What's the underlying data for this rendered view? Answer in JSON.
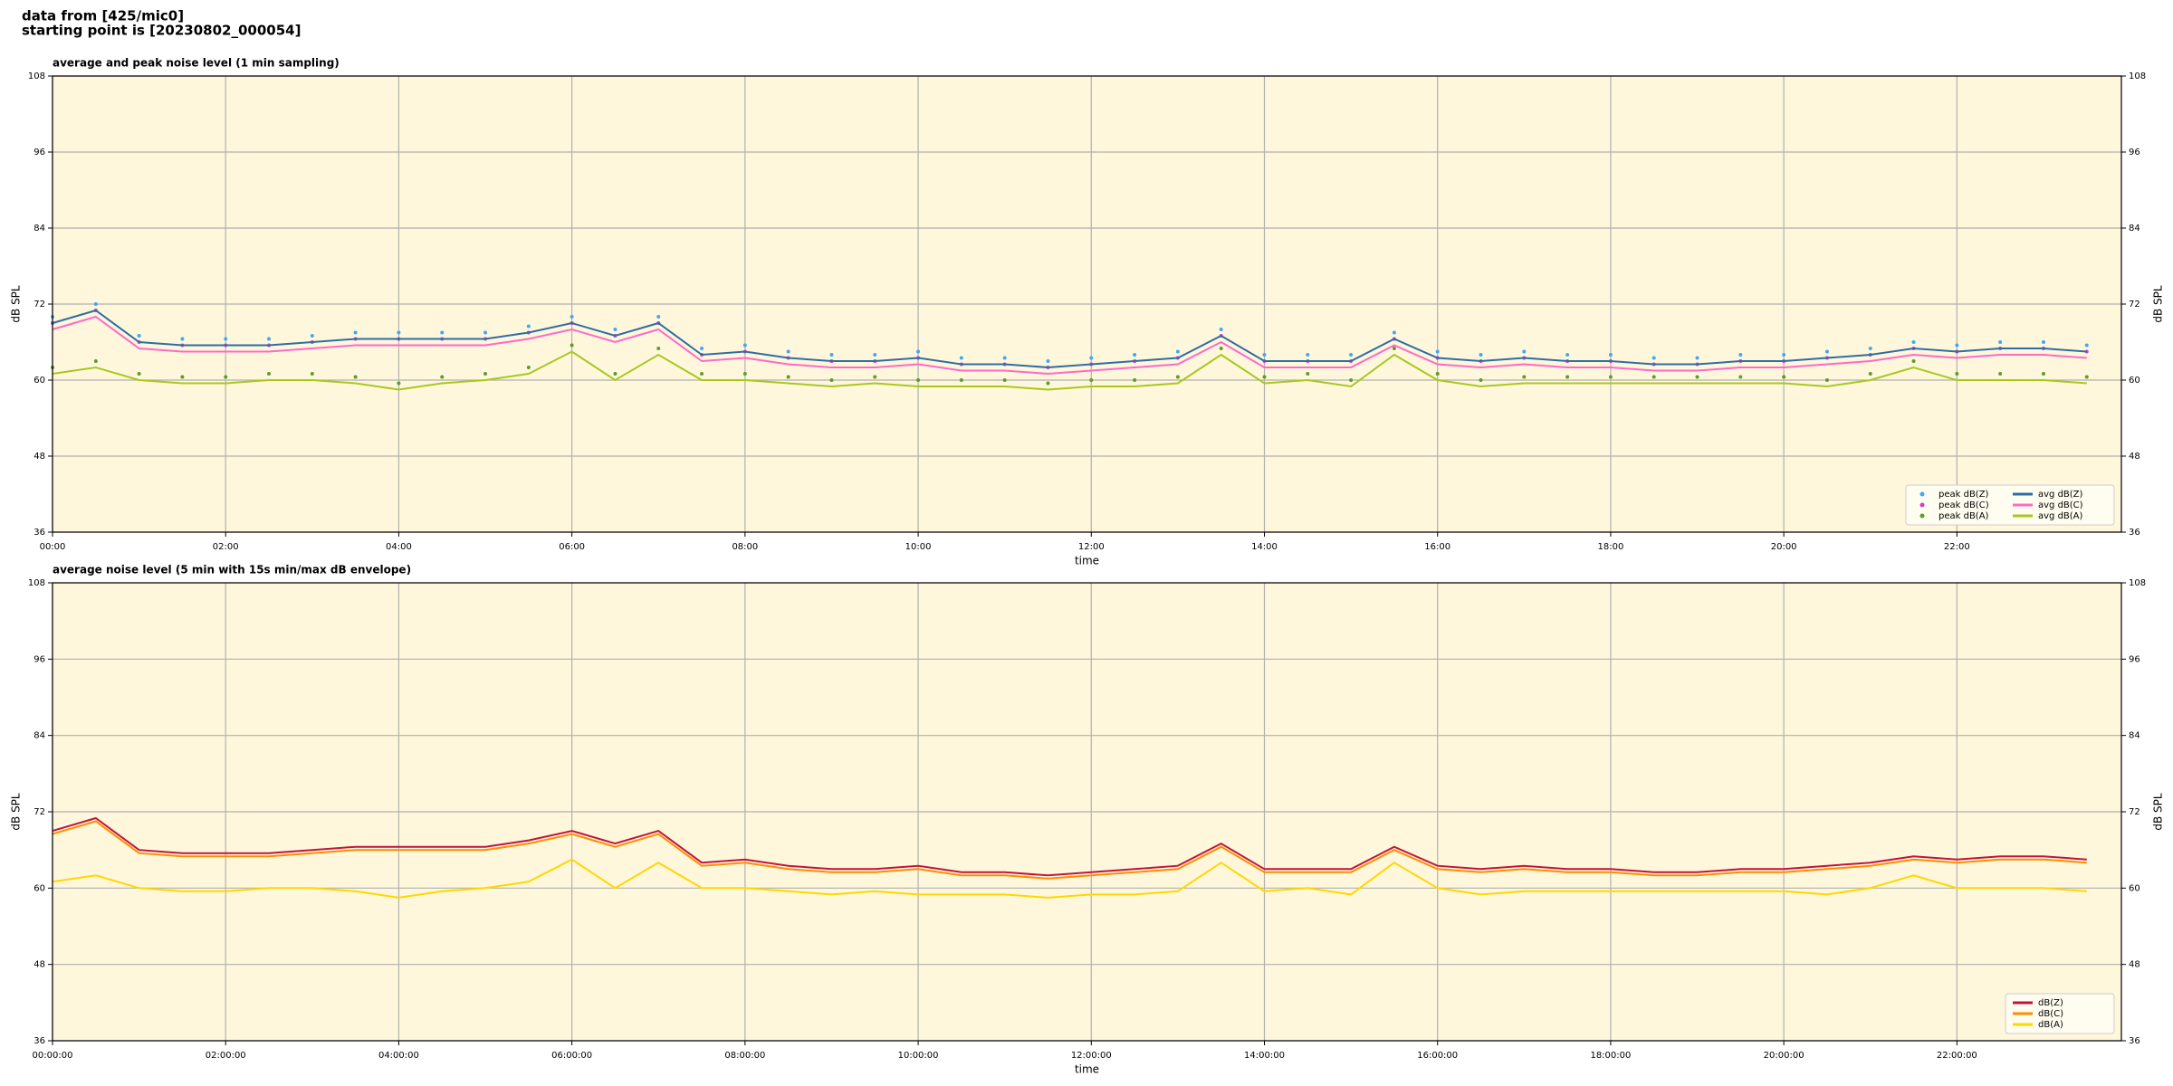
{
  "header": {
    "lines": [
      "data from [425/mic0]",
      "starting point is [20230802_000054]"
    ]
  },
  "chart_data": [
    {
      "type": "line",
      "title": "average and peak noise level (1 min sampling)",
      "xlabel": "time",
      "ylabel": "dB SPL",
      "y2label": "dB SPL",
      "xlim": [
        0,
        23.9
      ],
      "ylim": [
        36,
        108
      ],
      "y2lim": [
        36,
        108
      ],
      "grid": true,
      "legend": "lower right",
      "legend_columns": 2,
      "yticks": [
        36,
        48,
        60,
        72,
        84,
        96,
        108
      ],
      "y2ticks": [
        36,
        48,
        60,
        72,
        84,
        96,
        108
      ],
      "xticks": [
        {
          "value": 0,
          "label": "00:00"
        },
        {
          "value": 2,
          "label": "02:00"
        },
        {
          "value": 4,
          "label": "04:00"
        },
        {
          "value": 6,
          "label": "06:00"
        },
        {
          "value": 8,
          "label": "08:00"
        },
        {
          "value": 10,
          "label": "10:00"
        },
        {
          "value": 12,
          "label": "12:00"
        },
        {
          "value": 14,
          "label": "14:00"
        },
        {
          "value": 16,
          "label": "16:00"
        },
        {
          "value": 18,
          "label": "18:00"
        },
        {
          "value": 20,
          "label": "20:00"
        },
        {
          "value": 22,
          "label": "22:00"
        }
      ],
      "x": [
        0,
        0.5,
        1,
        1.5,
        2,
        2.5,
        3,
        3.5,
        4,
        4.5,
        5,
        5.5,
        6,
        6.5,
        7,
        7.5,
        8,
        8.5,
        9,
        9.5,
        10,
        10.5,
        11,
        11.5,
        12,
        12.5,
        13,
        13.5,
        14,
        14.5,
        15,
        15.5,
        16,
        16.5,
        17,
        17.5,
        18,
        18.5,
        19,
        19.5,
        20,
        20.5,
        21,
        21.5,
        22,
        22.5,
        23,
        23.5
      ],
      "series": [
        {
          "name": "peak dB(Z)",
          "style": "dots",
          "color": "#3fa9f5",
          "values": [
            70,
            72,
            67,
            66.5,
            66.5,
            66.5,
            67,
            67.5,
            67.5,
            67.5,
            67.5,
            68.5,
            70,
            68,
            70,
            65,
            65.5,
            64.5,
            64,
            64,
            64.5,
            63.5,
            63.5,
            63,
            63.5,
            64,
            64.5,
            68,
            64,
            64,
            64,
            67.5,
            64.5,
            64,
            64.5,
            64,
            64,
            63.5,
            63.5,
            64,
            64,
            64.5,
            65,
            66,
            65.5,
            66,
            66,
            65.5
          ]
        },
        {
          "name": "peak dB(C)",
          "style": "dots",
          "color": "#d63ad6",
          "values": [
            69,
            71,
            66,
            65.5,
            65.5,
            65.5,
            66,
            66.5,
            66.5,
            66.5,
            66.5,
            67.5,
            69,
            67,
            69,
            64,
            64.5,
            63.5,
            63,
            63,
            63.5,
            62.5,
            62.5,
            62,
            62.5,
            63,
            63.5,
            67,
            63,
            63,
            63,
            66.5,
            63.5,
            63,
            63.5,
            63,
            63,
            62.5,
            62.5,
            63,
            63,
            63.5,
            64,
            65,
            64.5,
            65,
            65,
            64.5
          ]
        },
        {
          "name": "peak dB(A)",
          "style": "dots",
          "color": "#5a9e2c",
          "values": [
            62,
            63,
            61,
            60.5,
            60.5,
            61,
            61,
            60.5,
            59.5,
            60.5,
            61,
            62,
            65.5,
            61,
            65,
            61,
            61,
            60.5,
            60,
            60.5,
            60,
            60,
            60,
            59.5,
            60,
            60,
            60.5,
            65,
            60.5,
            61,
            60,
            65,
            61,
            60,
            60.5,
            60.5,
            60.5,
            60.5,
            60.5,
            60.5,
            60.5,
            60,
            61,
            63,
            61,
            61,
            61,
            60.5
          ]
        },
        {
          "name": "avg dB(Z)",
          "style": "line",
          "color": "#2e6da4",
          "values": [
            69,
            71,
            66,
            65.5,
            65.5,
            65.5,
            66,
            66.5,
            66.5,
            66.5,
            66.5,
            67.5,
            69,
            67,
            69,
            64,
            64.5,
            63.5,
            63,
            63,
            63.5,
            62.5,
            62.5,
            62,
            62.5,
            63,
            63.5,
            67,
            63,
            63,
            63,
            66.5,
            63.5,
            63,
            63.5,
            63,
            63,
            62.5,
            62.5,
            63,
            63,
            63.5,
            64,
            65,
            64.5,
            65,
            65,
            64.5
          ]
        },
        {
          "name": "avg dB(C)",
          "style": "line",
          "color": "#ff69c8",
          "values": [
            68,
            70,
            65,
            64.5,
            64.5,
            64.5,
            65,
            65.5,
            65.5,
            65.5,
            65.5,
            66.5,
            68,
            66,
            68,
            63,
            63.5,
            62.5,
            62,
            62,
            62.5,
            61.5,
            61.5,
            61,
            61.5,
            62,
            62.5,
            66,
            62,
            62,
            62,
            65.5,
            62.5,
            62,
            62.5,
            62,
            62,
            61.5,
            61.5,
            62,
            62,
            62.5,
            63,
            64,
            63.5,
            64,
            64,
            63.5
          ]
        },
        {
          "name": "avg dB(A)",
          "style": "line",
          "color": "#a8c820",
          "values": [
            61,
            62,
            60,
            59.5,
            59.5,
            60,
            60,
            59.5,
            58.5,
            59.5,
            60,
            61,
            64.5,
            60,
            64,
            60,
            60,
            59.5,
            59,
            59.5,
            59,
            59,
            59,
            58.5,
            59,
            59,
            59.5,
            64,
            59.5,
            60,
            59,
            64,
            60,
            59,
            59.5,
            59.5,
            59.5,
            59.5,
            59.5,
            59.5,
            59.5,
            59,
            60,
            62,
            60,
            60,
            60,
            59.5
          ]
        }
      ]
    },
    {
      "type": "line",
      "title": "average noise level (5 min with 15s min/max dB envelope)",
      "xlabel": "time",
      "ylabel": "dB SPL",
      "y2label": "dB SPL",
      "xlim": [
        0,
        23.9
      ],
      "ylim": [
        36,
        108
      ],
      "y2lim": [
        36,
        108
      ],
      "grid": true,
      "legend": "lower right",
      "legend_columns": 1,
      "yticks": [
        36,
        48,
        60,
        72,
        84,
        96,
        108
      ],
      "y2ticks": [
        36,
        48,
        60,
        72,
        84,
        96,
        108
      ],
      "xticks": [
        {
          "value": 0,
          "label": "00:00:00"
        },
        {
          "value": 2,
          "label": "02:00:00"
        },
        {
          "value": 4,
          "label": "04:00:00"
        },
        {
          "value": 6,
          "label": "06:00:00"
        },
        {
          "value": 8,
          "label": "08:00:00"
        },
        {
          "value": 10,
          "label": "10:00:00"
        },
        {
          "value": 12,
          "label": "12:00:00"
        },
        {
          "value": 14,
          "label": "14:00:00"
        },
        {
          "value": 16,
          "label": "16:00:00"
        },
        {
          "value": 18,
          "label": "18:00:00"
        },
        {
          "value": 20,
          "label": "20:00:00"
        },
        {
          "value": 22,
          "label": "22:00:00"
        }
      ],
      "x": [
        0,
        0.5,
        1,
        1.5,
        2,
        2.5,
        3,
        3.5,
        4,
        4.5,
        5,
        5.5,
        6,
        6.5,
        7,
        7.5,
        8,
        8.5,
        9,
        9.5,
        10,
        10.5,
        11,
        11.5,
        12,
        12.5,
        13,
        13.5,
        14,
        14.5,
        15,
        15.5,
        16,
        16.5,
        17,
        17.5,
        18,
        18.5,
        19,
        19.5,
        20,
        20.5,
        21,
        21.5,
        22,
        22.5,
        23,
        23.5
      ],
      "series": [
        {
          "name": "dB(Z)",
          "style": "line",
          "color": "#c0143c",
          "values": [
            69,
            71,
            66,
            65.5,
            65.5,
            65.5,
            66,
            66.5,
            66.5,
            66.5,
            66.5,
            67.5,
            69,
            67,
            69,
            64,
            64.5,
            63.5,
            63,
            63,
            63.5,
            62.5,
            62.5,
            62,
            62.5,
            63,
            63.5,
            67,
            63,
            63,
            63,
            66.5,
            63.5,
            63,
            63.5,
            63,
            63,
            62.5,
            62.5,
            63,
            63,
            63.5,
            64,
            65,
            64.5,
            65,
            65,
            64.5
          ]
        },
        {
          "name": "dB(C)",
          "style": "line",
          "color": "#ff8c00",
          "values": [
            68.5,
            70.5,
            65.5,
            65,
            65,
            65,
            65.5,
            66,
            66,
            66,
            66,
            67,
            68.5,
            66.5,
            68.5,
            63.5,
            64,
            63,
            62.5,
            62.5,
            63,
            62,
            62,
            61.5,
            62,
            62.5,
            63,
            66.5,
            62.5,
            62.5,
            62.5,
            66,
            63,
            62.5,
            63,
            62.5,
            62.5,
            62,
            62,
            62.5,
            62.5,
            63,
            63.5,
            64.5,
            64,
            64.5,
            64.5,
            64
          ]
        },
        {
          "name": "dB(A)",
          "style": "line",
          "color": "#ffd700",
          "values": [
            61,
            62,
            60,
            59.5,
            59.5,
            60,
            60,
            59.5,
            58.5,
            59.5,
            60,
            61,
            64.5,
            60,
            64,
            60,
            60,
            59.5,
            59,
            59.5,
            59,
            59,
            59,
            58.5,
            59,
            59,
            59.5,
            64,
            59.5,
            60,
            59,
            64,
            60,
            59,
            59.5,
            59.5,
            59.5,
            59.5,
            59.5,
            59.5,
            59.5,
            59,
            60,
            62,
            60,
            60,
            60,
            59.5
          ]
        }
      ]
    }
  ]
}
